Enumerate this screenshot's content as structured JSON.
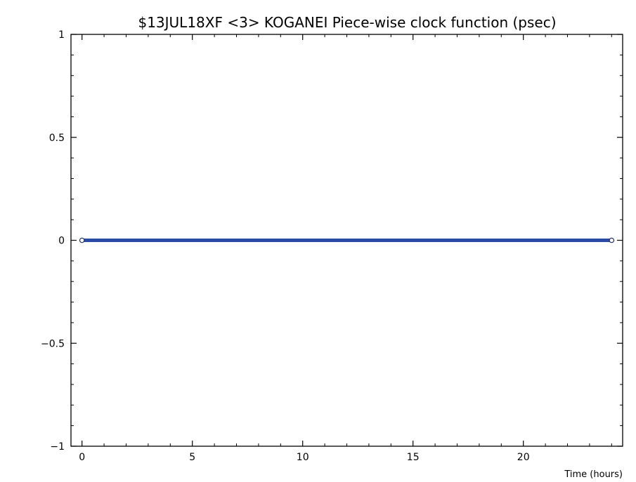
{
  "chart_data": {
    "type": "line",
    "title": "$13JUL18XF <3>  KOGANEI   Piece-wise clock function (psec)",
    "xlabel": "Time (hours)",
    "ylabel": "",
    "xlim": [
      -0.5,
      24.5
    ],
    "ylim": [
      -1,
      1
    ],
    "x_ticks": [
      0,
      5,
      10,
      15,
      20
    ],
    "x_tick_labels": [
      "0",
      "5",
      "10",
      "15",
      "20"
    ],
    "y_ticks": [
      -1,
      -0.5,
      0,
      0.5,
      1
    ],
    "y_tick_labels": [
      "−1",
      "−0.5",
      "0",
      "0.5",
      "1"
    ],
    "grid": false,
    "series": [
      {
        "x": [
          0,
          24
        ],
        "y": [
          0,
          0
        ],
        "color": "#2a4aa8",
        "marker": "open-circle"
      }
    ]
  }
}
